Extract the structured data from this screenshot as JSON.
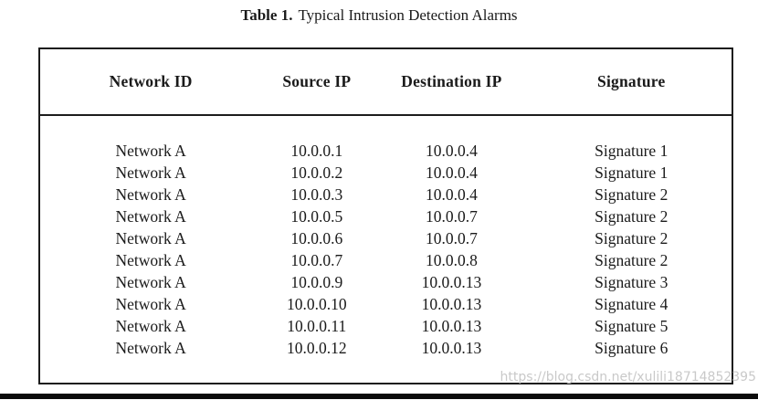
{
  "caption": {
    "label": "Table 1.",
    "title": "Typical Intrusion Detection Alarms"
  },
  "table": {
    "columns": [
      "Network ID",
      "Source IP",
      "Destination IP",
      "Signature"
    ],
    "rows": [
      [
        "Network A",
        "10.0.0.1",
        "10.0.0.4",
        "Signature 1"
      ],
      [
        "Network A",
        "10.0.0.2",
        "10.0.0.4",
        "Signature 1"
      ],
      [
        "Network A",
        "10.0.0.3",
        "10.0.0.4",
        "Signature 2"
      ],
      [
        "Network A",
        "10.0.0.5",
        "10.0.0.7",
        "Signature 2"
      ],
      [
        "Network A",
        "10.0.0.6",
        "10.0.0.7",
        "Signature 2"
      ],
      [
        "Network A",
        "10.0.0.7",
        "10.0.0.8",
        "Signature 2"
      ],
      [
        "Network A",
        "10.0.0.9",
        "10.0.0.13",
        "Signature 3"
      ],
      [
        "Network A",
        "10.0.0.10",
        "10.0.0.13",
        "Signature 4"
      ],
      [
        "Network A",
        "10.0.0.11",
        "10.0.0.13",
        "Signature 5"
      ],
      [
        "Network A",
        "10.0.0.12",
        "10.0.0.13",
        "Signature 6"
      ]
    ]
  },
  "watermark": {
    "text": "https://blog.csdn.net/xulili18714852395"
  },
  "colors": {
    "border": "#1c1c1c",
    "text": "#1a1a1a",
    "watermark": "#c9c9c9",
    "bottom_bar": "#0a0a0a"
  }
}
